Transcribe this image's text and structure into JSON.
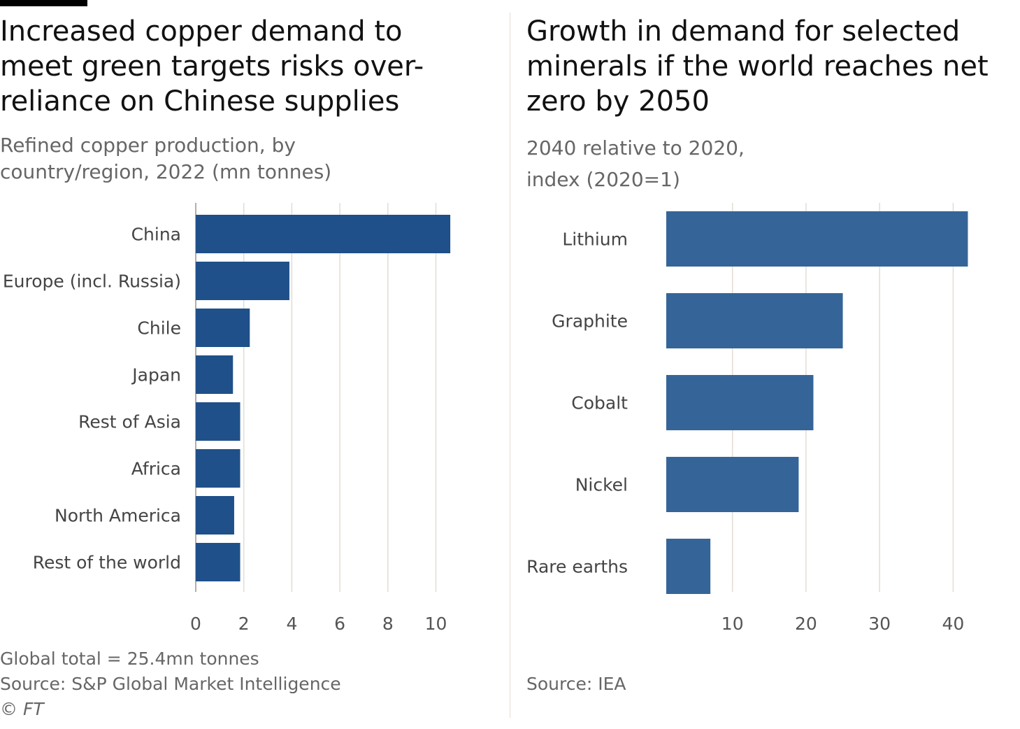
{
  "left": {
    "title": "Increased copper demand to meet green targets risks over-reliance on Chinese supplies",
    "subtitle": "Refined copper production, by country/region, 2022 (mn tonnes)",
    "notes": [
      "Global total = 25.4mn tonnes",
      "Source: S&P Global Market Intelligence",
      "© FT"
    ]
  },
  "right": {
    "title": "Growth in demand for selected minerals if the world reaches net zero by 2050",
    "subtitle": "2040 relative to 2020, index (2020=1)",
    "notes": [
      "Source: IEA"
    ]
  },
  "chart_data": [
    {
      "type": "bar",
      "orientation": "horizontal",
      "categories": [
        "China",
        "Europe (incl. Russia)",
        "Chile",
        "Japan",
        "Rest of Asia",
        "Africa",
        "North America",
        "Rest of the world"
      ],
      "values": [
        10.6,
        3.9,
        2.25,
        1.55,
        1.85,
        1.85,
        1.6,
        1.85
      ],
      "xlim": [
        0,
        11.5
      ],
      "xticks": [
        0,
        2,
        4,
        6,
        8,
        10
      ],
      "color": "#1f5089",
      "grid": true
    },
    {
      "type": "bar",
      "orientation": "horizontal",
      "categories": [
        "Lithium",
        "Graphite",
        "Cobalt",
        "Nickel",
        "Rare earths"
      ],
      "values": [
        42,
        25,
        21,
        19,
        7
      ],
      "xlim": [
        1,
        45
      ],
      "xticks": [
        10,
        20,
        30,
        40
      ],
      "color": "#356598",
      "grid": true
    }
  ]
}
